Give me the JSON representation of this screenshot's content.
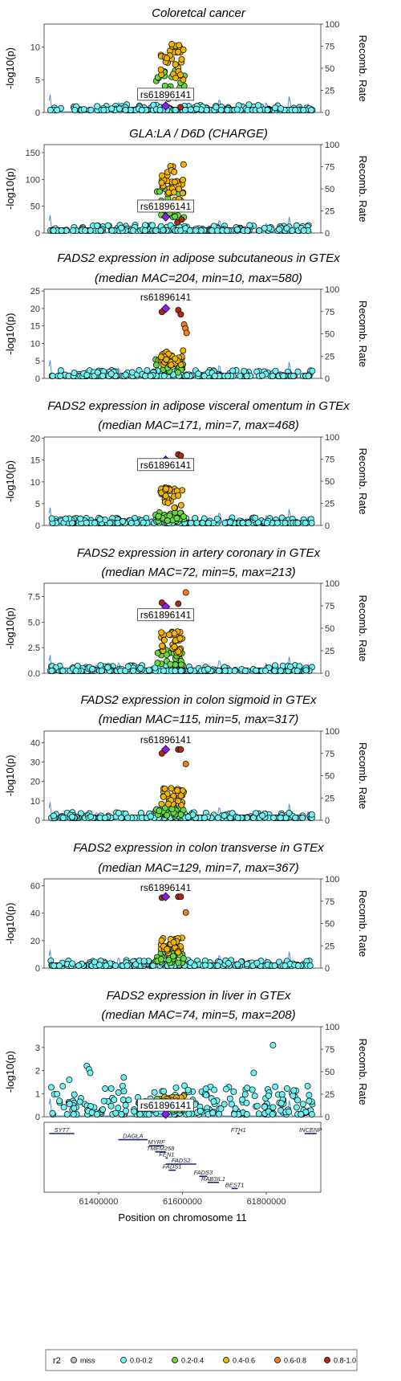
{
  "chart_data": {
    "type": "scatter",
    "x_axis": {
      "label": "Position on chromosome 11",
      "range": [
        61270000,
        61930000
      ],
      "ticks": [
        61400000,
        61600000,
        61800000
      ]
    },
    "y_label": "-log10(p)",
    "y2_label": "Recomb. Rate",
    "y2_range": [
      0,
      100
    ],
    "y2_ticks": [
      0,
      25,
      50,
      75,
      100
    ],
    "lead_snp": {
      "name": "rs61896141",
      "position": 61560000
    },
    "legend": {
      "title": "r2",
      "items": [
        {
          "label": "miss",
          "color": "#BEBEBE"
        },
        {
          "label": "0.0-0.2",
          "color": "#6FF2F2"
        },
        {
          "label": "0.2-0.4",
          "color": "#66D93F"
        },
        {
          "label": "0.4-0.6",
          "color": "#F0B400"
        },
        {
          "label": "0.6-0.8",
          "color": "#F07E20"
        },
        {
          "label": "0.8-1.0",
          "color": "#B02A12"
        }
      ],
      "lead_color": "#8A1CF0",
      "placement": "bottom"
    },
    "panels": [
      {
        "title": "Coloretcal cancer",
        "subtitle": "",
        "ylim": [
          0,
          13.5
        ],
        "yticks": [
          0,
          5,
          10
        ],
        "lead_p": 1.0,
        "label_y": 2.6,
        "label_box": true,
        "highlights": [
          {
            "x": 61595000,
            "y": 0.8,
            "c": 5
          }
        ],
        "peak": {
          "green": 6.5,
          "orange": 10.5
        }
      },
      {
        "title": "GLA:LA / D6D (CHARGE)",
        "subtitle": "",
        "ylim": [
          0,
          165
        ],
        "yticks": [
          0,
          50,
          100,
          150
        ],
        "lead_p": 30,
        "label_y": 48,
        "label_box": true,
        "highlights": [
          {
            "x": 61588000,
            "y": 20,
            "c": 5
          },
          {
            "x": 61598000,
            "y": 25,
            "c": 5
          }
        ],
        "peak": {
          "green": 95,
          "orange": 130
        }
      },
      {
        "title": "FADS2 expression in adipose subcutaneous in GTEx",
        "subtitle": "(median MAC=204, min=10, max=580)",
        "ylim": [
          0,
          25.5
        ],
        "yticks": [
          0,
          5,
          10,
          15,
          20,
          25
        ],
        "lead_p": 20,
        "label_y": 23,
        "label_box": false,
        "highlights": [
          {
            "x": 61551000,
            "y": 19,
            "c": 5
          },
          {
            "x": 61590000,
            "y": 19.5,
            "c": 5
          },
          {
            "x": 61596000,
            "y": 18.3,
            "c": 5
          },
          {
            "x": 61604000,
            "y": 15.4,
            "c": 4
          },
          {
            "x": 61607000,
            "y": 14.3,
            "c": 4
          },
          {
            "x": 61610000,
            "y": 13,
            "c": 4
          }
        ],
        "peak": {
          "green": 5.5,
          "orange": 8.0
        }
      },
      {
        "title": "FADS2 expression in adipose visceral omentum in GTEx",
        "subtitle": "(median MAC=171, min=7, max=468)",
        "ylim": [
          0,
          20.3
        ],
        "yticks": [
          0,
          5,
          10,
          15,
          20
        ],
        "lead_p": 15,
        "label_y": 13.7,
        "label_box": true,
        "highlights": [
          {
            "x": 61551000,
            "y": 14.2,
            "c": 5
          },
          {
            "x": 61590000,
            "y": 16.3,
            "c": 5
          },
          {
            "x": 61596000,
            "y": 16.0,
            "c": 5
          },
          {
            "x": 61604000,
            "y": 14.5,
            "c": 4
          }
        ],
        "peak": {
          "green": 3.0,
          "orange": 9.0
        }
      },
      {
        "title": "FADS2 expression in artery coronary in GTEx",
        "subtitle": "(median MAC=72, min=5, max=213)",
        "ylim": [
          0,
          8.8
        ],
        "yticks": [
          0.0,
          2.5,
          5.0,
          7.5
        ],
        "lead_p": 6.5,
        "label_y": 5.6,
        "label_box": true,
        "highlights": [
          {
            "x": 61551000,
            "y": 6.9,
            "c": 5
          },
          {
            "x": 61590000,
            "y": 6.8,
            "c": 5
          },
          {
            "x": 61608000,
            "y": 7.9,
            "c": 4
          }
        ],
        "peak": {
          "green": 2.5,
          "orange": 4.2
        }
      },
      {
        "title": "FADS2 expression in colon sigmoid in GTEx",
        "subtitle": "(median MAC=115, min=5, max=317)",
        "ylim": [
          0,
          46
        ],
        "yticks": [
          0,
          10,
          20,
          30,
          40
        ],
        "lead_p": 36.5,
        "label_y": 41,
        "label_box": false,
        "highlights": [
          {
            "x": 61551000,
            "y": 34.5,
            "c": 5
          },
          {
            "x": 61590000,
            "y": 36.5,
            "c": 5
          },
          {
            "x": 61596000,
            "y": 36.5,
            "c": 5
          },
          {
            "x": 61608000,
            "y": 29,
            "c": 4
          }
        ],
        "peak": {
          "green": 7.0,
          "orange": 17.0
        }
      },
      {
        "title": "FADS2 expression in colon transverse in GTEx",
        "subtitle": "(median MAC=129, min=7, max=367)",
        "ylim": [
          0,
          65
        ],
        "yticks": [
          0,
          20,
          40,
          60
        ],
        "lead_p": 52,
        "label_y": 58,
        "label_box": false,
        "highlights": [
          {
            "x": 61551000,
            "y": 51.3,
            "c": 5
          },
          {
            "x": 61590000,
            "y": 52,
            "c": 5
          },
          {
            "x": 61596000,
            "y": 52,
            "c": 5
          },
          {
            "x": 61608000,
            "y": 40.5,
            "c": 4
          }
        ],
        "peak": {
          "green": 12.0,
          "orange": 22.0
        }
      },
      {
        "title": "FADS2 expression in liver in GTEx",
        "subtitle": "(median MAC=74, min=5, max=208)",
        "ylim": [
          0,
          3.9
        ],
        "yticks": [
          0,
          1,
          2,
          3
        ],
        "lead_p": 0.05,
        "label_y": 0.45,
        "label_box": true,
        "highlights": [
          {
            "x": 61816000,
            "y": 3.1,
            "c": 1
          },
          {
            "x": 61372000,
            "y": 2.2,
            "c": 1
          },
          {
            "x": 61377000,
            "y": 2.05,
            "c": 1
          },
          {
            "x": 61380000,
            "y": 1.9,
            "c": 1
          },
          {
            "x": 61770000,
            "y": 1.9,
            "c": 1
          },
          {
            "x": 61460000,
            "y": 1.7,
            "c": 1
          },
          {
            "x": 61330000,
            "y": 1.6,
            "c": 1
          }
        ],
        "peak": {
          "green": 0.9,
          "orange": 0.9
        }
      }
    ],
    "genes": [
      {
        "name": "SYT7",
        "start": 61282000,
        "end": 61342000,
        "row": 0
      },
      {
        "name": "DAGLA",
        "start": 61447000,
        "end": 61517000,
        "row": 1
      },
      {
        "name": "MYRF",
        "start": 61520000,
        "end": 61556000,
        "row": 2
      },
      {
        "name": "TMEM258",
        "start": 61535000,
        "end": 61560000,
        "row": 3
      },
      {
        "name": "FEN1",
        "start": 61560000,
        "end": 61565000,
        "row": 4
      },
      {
        "name": "FADS2",
        "start": 61560000,
        "end": 61633000,
        "row": 5
      },
      {
        "name": "FADS1",
        "start": 61567000,
        "end": 61584000,
        "row": 6
      },
      {
        "name": "FADS3",
        "start": 61640000,
        "end": 61659000,
        "row": 7
      },
      {
        "name": "RAB3IL1",
        "start": 61660000,
        "end": 61687000,
        "row": 8
      },
      {
        "name": "BEST1",
        "start": 61717000,
        "end": 61732000,
        "row": 9
      },
      {
        "name": "FTH1",
        "start": 61731000,
        "end": 61736000,
        "row": 0
      },
      {
        "name": "INCENP",
        "start": 61891000,
        "end": 61920000,
        "row": 0
      }
    ]
  }
}
